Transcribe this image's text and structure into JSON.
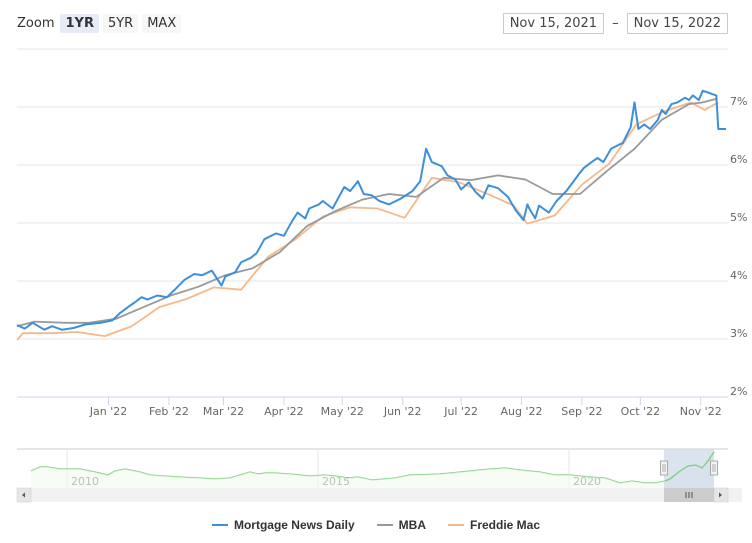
{
  "toolbar": {
    "zoom_label": "Zoom",
    "zoom_buttons": [
      {
        "label": "1YR",
        "active": true
      },
      {
        "label": "5YR",
        "active": false
      },
      {
        "label": "MAX",
        "active": false
      }
    ],
    "range_from": "Nov 15, 2021",
    "range_separator": "–",
    "range_to": "Nov 15, 2022"
  },
  "colors": {
    "mnd": "#3d8fdb",
    "mba": "#999999",
    "freddie": "#f5b88a",
    "navigator_line": "#7fcf7f",
    "navigator_mask": "#cdd9e8",
    "grid": "#e6e6e6"
  },
  "chart_data": {
    "type": "line",
    "title": "",
    "xlabel": "",
    "ylabel": "",
    "x_range": [
      "Nov 15, 2021",
      "Nov 15, 2022"
    ],
    "x_ticks": [
      "Jan '22",
      "Feb '22",
      "Mar '22",
      "Apr '22",
      "May '22",
      "Jun '22",
      "Jul '22",
      "Aug '22",
      "Sep '22",
      "Oct '22",
      "Nov '22"
    ],
    "y_ticks": [
      "2%",
      "3%",
      "4%",
      "5%",
      "6%",
      "7%"
    ],
    "ylim": [
      2,
      8
    ],
    "grid": true,
    "legend_position": "bottom",
    "series": [
      {
        "name": "Mortgage News Daily",
        "key": "mnd",
        "points": [
          [
            "2021-11-15",
            3.24
          ],
          [
            "2021-11-19",
            3.18
          ],
          [
            "2021-11-23",
            3.28
          ],
          [
            "2021-11-29",
            3.16
          ],
          [
            "2021-12-03",
            3.22
          ],
          [
            "2021-12-08",
            3.16
          ],
          [
            "2021-12-14",
            3.19
          ],
          [
            "2021-12-20",
            3.25
          ],
          [
            "2021-12-28",
            3.28
          ],
          [
            "2022-01-03",
            3.32
          ],
          [
            "2022-01-07",
            3.45
          ],
          [
            "2022-01-11",
            3.55
          ],
          [
            "2022-01-14",
            3.62
          ],
          [
            "2022-01-18",
            3.72
          ],
          [
            "2022-01-21",
            3.68
          ],
          [
            "2022-01-26",
            3.75
          ],
          [
            "2022-01-31",
            3.72
          ],
          [
            "2022-02-04",
            3.85
          ],
          [
            "2022-02-09",
            4.02
          ],
          [
            "2022-02-14",
            4.12
          ],
          [
            "2022-02-18",
            4.1
          ],
          [
            "2022-02-23",
            4.18
          ],
          [
            "2022-02-28",
            3.92
          ],
          [
            "2022-03-02",
            4.08
          ],
          [
            "2022-03-07",
            4.15
          ],
          [
            "2022-03-10",
            4.32
          ],
          [
            "2022-03-15",
            4.4
          ],
          [
            "2022-03-18",
            4.48
          ],
          [
            "2022-03-22",
            4.72
          ],
          [
            "2022-03-28",
            4.82
          ],
          [
            "2022-04-01",
            4.78
          ],
          [
            "2022-04-05",
            5.02
          ],
          [
            "2022-04-08",
            5.18
          ],
          [
            "2022-04-12",
            5.08
          ],
          [
            "2022-04-14",
            5.25
          ],
          [
            "2022-04-19",
            5.32
          ],
          [
            "2022-04-21",
            5.38
          ],
          [
            "2022-04-26",
            5.25
          ],
          [
            "2022-05-02",
            5.62
          ],
          [
            "2022-05-05",
            5.55
          ],
          [
            "2022-05-09",
            5.72
          ],
          [
            "2022-05-12",
            5.5
          ],
          [
            "2022-05-16",
            5.48
          ],
          [
            "2022-05-20",
            5.38
          ],
          [
            "2022-05-25",
            5.32
          ],
          [
            "2022-05-31",
            5.42
          ],
          [
            "2022-06-06",
            5.55
          ],
          [
            "2022-06-10",
            5.72
          ],
          [
            "2022-06-13",
            6.28
          ],
          [
            "2022-06-16",
            6.05
          ],
          [
            "2022-06-21",
            5.98
          ],
          [
            "2022-06-24",
            5.82
          ],
          [
            "2022-06-28",
            5.75
          ],
          [
            "2022-07-01",
            5.58
          ],
          [
            "2022-07-05",
            5.7
          ],
          [
            "2022-07-08",
            5.55
          ],
          [
            "2022-07-12",
            5.42
          ],
          [
            "2022-07-15",
            5.65
          ],
          [
            "2022-07-20",
            5.6
          ],
          [
            "2022-07-25",
            5.45
          ],
          [
            "2022-07-29",
            5.22
          ],
          [
            "2022-08-02",
            5.05
          ],
          [
            "2022-08-04",
            5.32
          ],
          [
            "2022-08-05",
            5.25
          ],
          [
            "2022-08-08",
            5.08
          ],
          [
            "2022-08-10",
            5.3
          ],
          [
            "2022-08-15",
            5.18
          ],
          [
            "2022-08-19",
            5.38
          ],
          [
            "2022-08-24",
            5.55
          ],
          [
            "2022-08-30",
            5.82
          ],
          [
            "2022-09-02",
            5.95
          ],
          [
            "2022-09-06",
            6.05
          ],
          [
            "2022-09-09",
            6.12
          ],
          [
            "2022-09-12",
            6.05
          ],
          [
            "2022-09-16",
            6.28
          ],
          [
            "2022-09-20",
            6.35
          ],
          [
            "2022-09-22",
            6.38
          ],
          [
            "2022-09-26",
            6.65
          ],
          [
            "2022-09-28",
            7.08
          ],
          [
            "2022-09-30",
            6.62
          ],
          [
            "2022-10-03",
            6.7
          ],
          [
            "2022-10-06",
            6.62
          ],
          [
            "2022-10-10",
            6.78
          ],
          [
            "2022-10-12",
            6.95
          ],
          [
            "2022-10-14",
            6.88
          ],
          [
            "2022-10-17",
            7.05
          ],
          [
            "2022-10-20",
            7.08
          ],
          [
            "2022-10-24",
            7.16
          ],
          [
            "2022-10-26",
            7.12
          ],
          [
            "2022-10-28",
            7.2
          ],
          [
            "2022-10-31",
            7.12
          ],
          [
            "2022-11-02",
            7.28
          ],
          [
            "2022-11-04",
            7.26
          ],
          [
            "2022-11-07",
            7.22
          ],
          [
            "2022-11-09",
            7.2
          ],
          [
            "2022-11-10",
            6.62
          ],
          [
            "2022-11-14",
            6.62
          ]
        ]
      },
      {
        "name": "MBA",
        "key": "mba",
        "points": [
          [
            "2021-11-15",
            3.22
          ],
          [
            "2021-11-24",
            3.3
          ],
          [
            "2021-12-10",
            3.28
          ],
          [
            "2021-12-22",
            3.28
          ],
          [
            "2022-01-05",
            3.35
          ],
          [
            "2022-01-19",
            3.55
          ],
          [
            "2022-02-02",
            3.75
          ],
          [
            "2022-02-16",
            3.9
          ],
          [
            "2022-03-02",
            4.1
          ],
          [
            "2022-03-16",
            4.22
          ],
          [
            "2022-03-30",
            4.5
          ],
          [
            "2022-04-13",
            4.95
          ],
          [
            "2022-04-27",
            5.2
          ],
          [
            "2022-05-11",
            5.4
          ],
          [
            "2022-05-25",
            5.5
          ],
          [
            "2022-06-08",
            5.45
          ],
          [
            "2022-06-22",
            5.78
          ],
          [
            "2022-07-06",
            5.74
          ],
          [
            "2022-07-20",
            5.82
          ],
          [
            "2022-08-03",
            5.75
          ],
          [
            "2022-08-17",
            5.5
          ],
          [
            "2022-08-31",
            5.5
          ],
          [
            "2022-09-14",
            5.9
          ],
          [
            "2022-09-28",
            6.28
          ],
          [
            "2022-10-12",
            6.78
          ],
          [
            "2022-10-26",
            7.05
          ],
          [
            "2022-11-02",
            7.08
          ],
          [
            "2022-11-09",
            7.14
          ]
        ]
      },
      {
        "name": "Freddie Mac",
        "key": "freddie",
        "points": [
          [
            "2021-11-15",
            2.98
          ],
          [
            "2021-11-18",
            3.1
          ],
          [
            "2021-12-02",
            3.1
          ],
          [
            "2021-12-16",
            3.12
          ],
          [
            "2021-12-30",
            3.05
          ],
          [
            "2022-01-13",
            3.22
          ],
          [
            "2022-01-27",
            3.55
          ],
          [
            "2022-02-10",
            3.69
          ],
          [
            "2022-02-24",
            3.89
          ],
          [
            "2022-03-10",
            3.85
          ],
          [
            "2022-03-24",
            4.42
          ],
          [
            "2022-04-07",
            4.72
          ],
          [
            "2022-04-21",
            5.11
          ],
          [
            "2022-05-05",
            5.27
          ],
          [
            "2022-05-19",
            5.25
          ],
          [
            "2022-06-02",
            5.09
          ],
          [
            "2022-06-16",
            5.78
          ],
          [
            "2022-06-30",
            5.7
          ],
          [
            "2022-07-14",
            5.51
          ],
          [
            "2022-07-28",
            5.3
          ],
          [
            "2022-08-04",
            4.99
          ],
          [
            "2022-08-18",
            5.13
          ],
          [
            "2022-09-01",
            5.66
          ],
          [
            "2022-09-15",
            6.02
          ],
          [
            "2022-09-29",
            6.7
          ],
          [
            "2022-10-13",
            6.92
          ],
          [
            "2022-10-27",
            7.08
          ],
          [
            "2022-11-03",
            6.95
          ],
          [
            "2022-11-10",
            7.08
          ]
        ]
      }
    ]
  },
  "navigator": {
    "year_labels": [
      "2010",
      "2015",
      "2020"
    ],
    "series_name": "Mortgage News Daily",
    "scroll_left_icon": "◂",
    "scroll_right_icon": "▸",
    "scroll_grip": "III"
  },
  "legend": [
    {
      "label": "Mortgage News Daily",
      "key": "mnd"
    },
    {
      "label": "MBA",
      "key": "mba"
    },
    {
      "label": "Freddie Mac",
      "key": "freddie"
    }
  ]
}
